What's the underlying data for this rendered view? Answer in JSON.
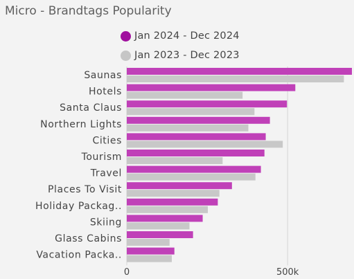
{
  "chart_data": {
    "type": "bar",
    "orientation": "horizontal",
    "title": "Micro - Brandtags Popularity",
    "categories": [
      "Saunas",
      "Hotels",
      "Santa Claus",
      "Northern Lights",
      "Cities",
      "Tourism",
      "Travel",
      "Places To Visit",
      "Holiday Packag..",
      "Skiing",
      "Glass Cabins",
      "Vacation Packa.."
    ],
    "series": [
      {
        "name": "Jan 2024 - Dec 2024",
        "color": "#c040b8",
        "values": [
          700000,
          524000,
          498000,
          445000,
          432000,
          428000,
          417000,
          327000,
          283000,
          236000,
          206000,
          148000
        ]
      },
      {
        "name": "Jan 2023 - Dec 2023",
        "color": "#c8c8c8",
        "values": [
          675000,
          360000,
          397000,
          378000,
          485000,
          298000,
          400000,
          288000,
          252000,
          195000,
          133000,
          140000
        ]
      }
    ],
    "xlim": [
      0,
      700000
    ],
    "xticks": [
      {
        "value": 0,
        "label": "0"
      },
      {
        "value": 500000,
        "label": "500k"
      }
    ],
    "grid": true,
    "legend_position": "top"
  },
  "legend_colors": {
    "dot_2024": "#a0109e",
    "dot_2023": "#c6c6c6"
  }
}
